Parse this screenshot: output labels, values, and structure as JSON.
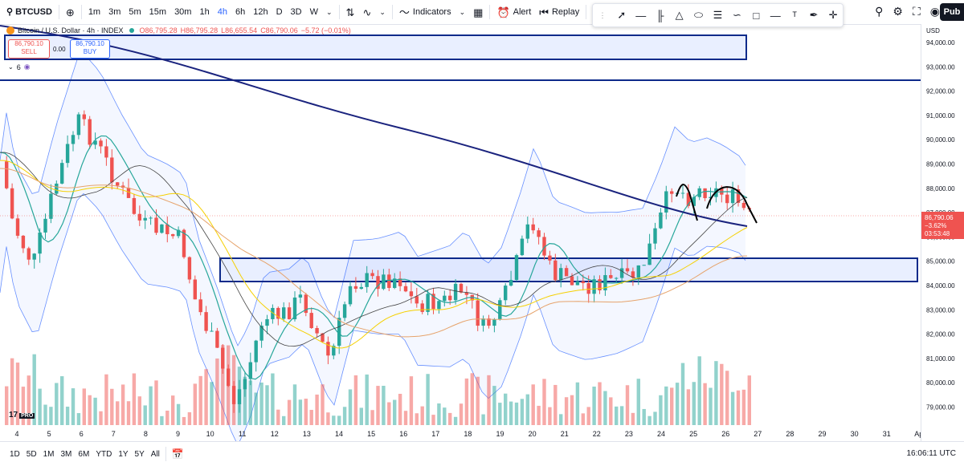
{
  "toolbar": {
    "symbol": "BTCUSD",
    "intervals": [
      "1m",
      "3m",
      "5m",
      "15m",
      "30m",
      "1h",
      "4h",
      "6h",
      "12h",
      "D",
      "3D",
      "W"
    ],
    "active_interval": "4h",
    "indicators_label": "Indicators",
    "alert_label": "Alert",
    "replay_label": "Replay",
    "publish_label": "Pub"
  },
  "legend": {
    "title": "Bitcoin / U.S. Dollar · 4h · INDEX",
    "open": "O86,795.28",
    "high": "H86,795.28",
    "low": "L86,655.54",
    "close": "C86,790.06",
    "change": "−5.72 (−0.01%)",
    "layers": "6"
  },
  "trade": {
    "sell_price": "86,790.10",
    "sell_label": "SELL",
    "spread": "0.00",
    "buy_price": "86,790.10",
    "buy_label": "BUY"
  },
  "price_axis": {
    "currency": "USD",
    "labels": [
      "94,000.00",
      "93,000.00",
      "92,000.00",
      "91,000.00",
      "90,000.00",
      "89,000.00",
      "88,000.00",
      "87,000.00",
      "86,000.00",
      "85,000.00",
      "84,000.00",
      "83,000.00",
      "82,000.00",
      "81,000.00",
      "80,000.00",
      "79,000.00"
    ],
    "last_price": "86,790.06",
    "last_change": "−3.62%",
    "countdown": "03:53:48"
  },
  "time_axis": {
    "labels": [
      "4",
      "5",
      "6",
      "7",
      "8",
      "9",
      "10",
      "11",
      "12",
      "13",
      "14",
      "15",
      "16",
      "17",
      "18",
      "19",
      "20",
      "21",
      "22",
      "23",
      "24",
      "25",
      "26",
      "27",
      "28",
      "29",
      "30",
      "31",
      "Ap"
    ]
  },
  "bottom": {
    "ranges": [
      "1D",
      "5D",
      "1M",
      "3M",
      "6M",
      "YTD",
      "1Y",
      "5Y",
      "All"
    ],
    "clock": "16:06:11 UTC"
  },
  "colors": {
    "up": "#26a69a",
    "down": "#ef5350",
    "band": "#2962ff",
    "ma_long": "#1a237e",
    "zone_border": "#0d2a8a"
  }
}
